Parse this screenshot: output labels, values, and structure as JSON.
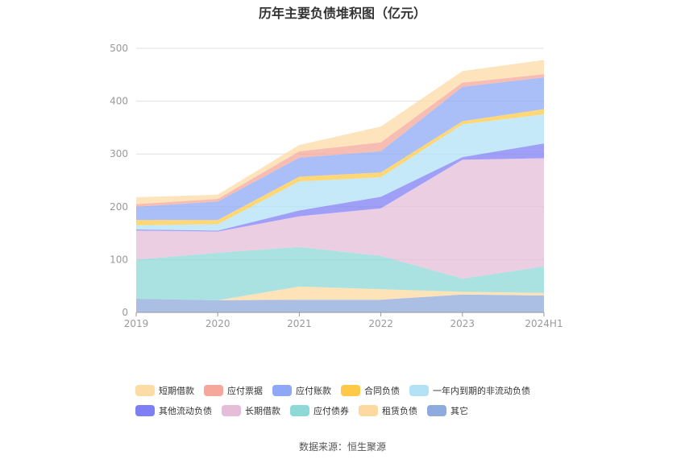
{
  "chart_data": {
    "type": "area",
    "stacked": true,
    "title": "历年主要负债堆积图（亿元）",
    "x": [
      "2019",
      "2020",
      "2021",
      "2022",
      "2023",
      "2024H1"
    ],
    "y_ticks": [
      "0",
      "100",
      "200",
      "300",
      "400",
      "500"
    ],
    "ylim": [
      0,
      500
    ],
    "grid": true,
    "legend_position": "bottom",
    "series": [
      {
        "name": "其它",
        "color": "#8faadc",
        "values": [
          26,
          23,
          24,
          24,
          34,
          32
        ]
      },
      {
        "name": "租赁负债",
        "color": "#fdd9a0",
        "values": [
          0,
          0,
          25,
          20,
          5,
          5
        ]
      },
      {
        "name": "应付债券",
        "color": "#8ed8d8",
        "values": [
          74,
          90,
          75,
          63,
          25,
          50
        ]
      },
      {
        "name": "长期借款",
        "color": "#e6bdd9",
        "values": [
          55,
          40,
          58,
          90,
          225,
          205
        ]
      },
      {
        "name": "其他流动负债",
        "color": "#7f7ff5",
        "values": [
          2,
          2,
          11,
          22,
          5,
          28
        ]
      },
      {
        "name": "一年内到期的非流动负债",
        "color": "#b3e2f7",
        "values": [
          8,
          12,
          55,
          37,
          62,
          55
        ]
      },
      {
        "name": "合同负债",
        "color": "#ffc947",
        "values": [
          10,
          8,
          9,
          9,
          6,
          10
        ]
      },
      {
        "name": "应付账款",
        "color": "#8ea8f5",
        "values": [
          25,
          35,
          36,
          40,
          65,
          60
        ]
      },
      {
        "name": "应付票据",
        "color": "#f4a79a",
        "values": [
          5,
          5,
          12,
          17,
          8,
          6
        ]
      },
      {
        "name": "短期借款",
        "color": "#fddba5",
        "values": [
          13,
          8,
          12,
          30,
          22,
          27
        ]
      }
    ]
  },
  "legend_rows": [
    [
      {
        "label": "短期借款",
        "color": "#fddba5"
      },
      {
        "label": "应付票据",
        "color": "#f4a79a"
      },
      {
        "label": "应付账款",
        "color": "#8ea8f5"
      },
      {
        "label": "合同负债",
        "color": "#ffc947"
      },
      {
        "label": "一年内到期的非流动负债",
        "color": "#b3e2f7"
      }
    ],
    [
      {
        "label": "其他流动负债",
        "color": "#7f7ff5"
      },
      {
        "label": "长期借款",
        "color": "#e6bdd9"
      },
      {
        "label": "应付债券",
        "color": "#8ed8d8"
      },
      {
        "label": "租赁负债",
        "color": "#fdd9a0"
      },
      {
        "label": "其它",
        "color": "#8faadc"
      }
    ]
  ],
  "source": "数据来源：恒生聚源"
}
